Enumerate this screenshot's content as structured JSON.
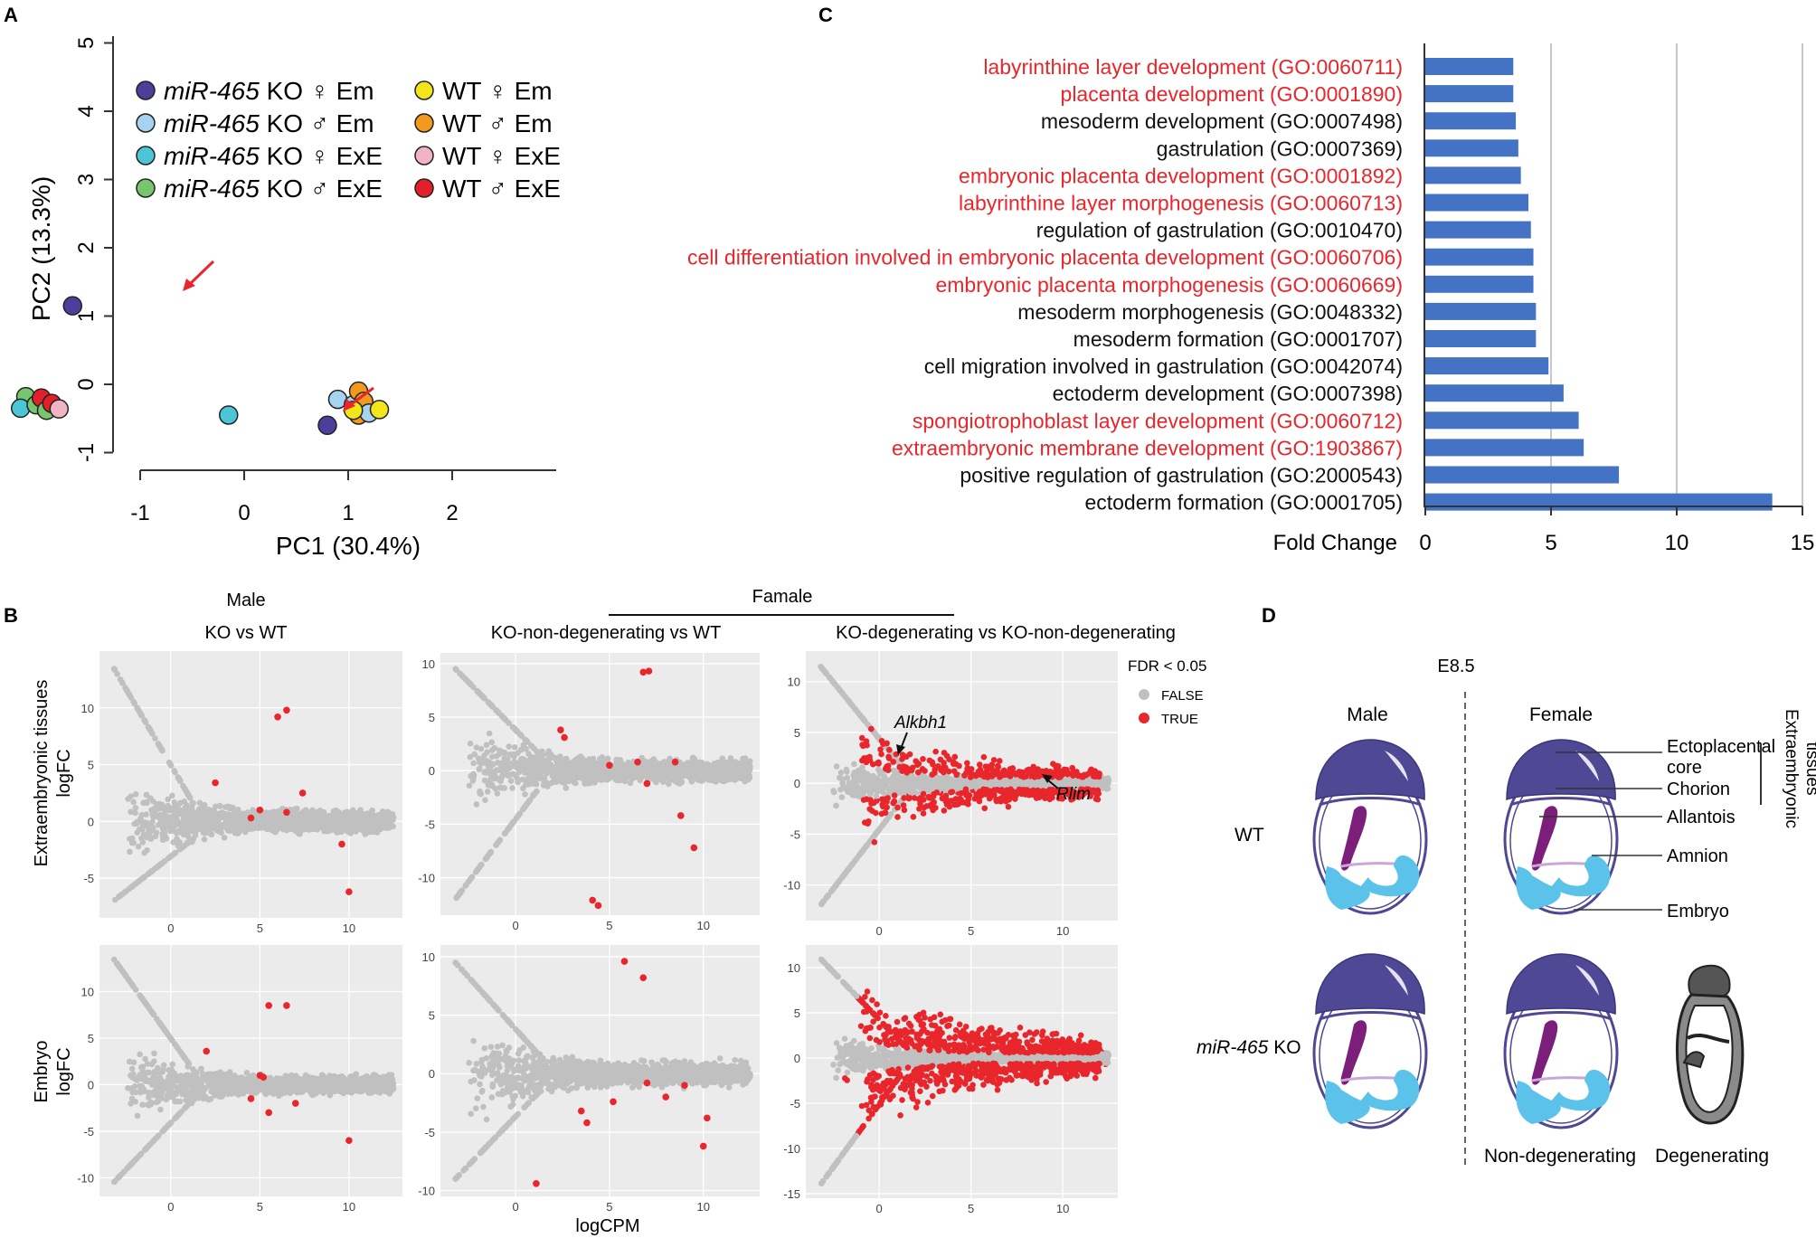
{
  "panel_labels": {
    "a": "A",
    "b": "B",
    "c": "C",
    "d": "D"
  },
  "colors": {
    "red": "#e8262b",
    "grey": "#c0c0c0",
    "bar": "#4472c4",
    "purple_dark": "#4f4894",
    "purple_light": "#7a75b8",
    "allantois": "#7b1f7a",
    "embryo": "#5bc2ea",
    "panelbg": "#ebebeb"
  },
  "pca": {
    "xlabel": "PC1 (30.4%)",
    "ylabel": "PC2 (13.3%)",
    "xticks": [
      "-1",
      "0",
      "1",
      "2"
    ],
    "yticks": [
      "-1",
      "0",
      "1",
      "2",
      "3",
      "4",
      "5"
    ],
    "legend": [
      {
        "pre": "miR-465",
        "post": " KO ♀ Em",
        "color": "#4b3f9b"
      },
      {
        "pre": "miR-465",
        "post": " KO ♂ Em",
        "color": "#a6d3ef"
      },
      {
        "pre": "miR-465",
        "post": " KO ♀ ExE",
        "color": "#4cc6d6"
      },
      {
        "pre": "miR-465",
        "post": " KO ♂ ExE",
        "color": "#76c66d"
      },
      {
        "pre": "",
        "post": "WT ♀ Em",
        "color": "#f2e51b"
      },
      {
        "pre": "",
        "post": "WT ♂ Em",
        "color": "#f29a1e"
      },
      {
        "pre": "",
        "post": "WT ♀ ExE",
        "color": "#f0b4c4"
      },
      {
        "pre": "",
        "post": "WT ♂ ExE",
        "color": "#e3202a"
      }
    ]
  },
  "go": {
    "axis_title": "Fold Change",
    "xticks": [
      "0",
      "5",
      "10",
      "15"
    ],
    "terms": [
      {
        "label": "labyrinthine layer development (GO:0060711)",
        "value": 3.5,
        "red": true
      },
      {
        "label": "placenta development (GO:0001890)",
        "value": 3.5,
        "red": true
      },
      {
        "label": "mesoderm development (GO:0007498)",
        "value": 3.6,
        "red": false
      },
      {
        "label": "gastrulation (GO:0007369)",
        "value": 3.7,
        "red": false
      },
      {
        "label": "embryonic placenta development (GO:0001892)",
        "value": 3.8,
        "red": true
      },
      {
        "label": "labyrinthine layer morphogenesis (GO:0060713)",
        "value": 4.1,
        "red": true
      },
      {
        "label": "regulation of gastrulation (GO:0010470)",
        "value": 4.2,
        "red": false
      },
      {
        "label": "cell differentiation involved in embryonic placenta development (GO:0060706)",
        "value": 4.3,
        "red": true
      },
      {
        "label": "embryonic placenta morphogenesis (GO:0060669)",
        "value": 4.3,
        "red": true
      },
      {
        "label": "mesoderm morphogenesis (GO:0048332)",
        "value": 4.4,
        "red": false
      },
      {
        "label": "mesoderm formation (GO:0001707)",
        "value": 4.4,
        "red": false
      },
      {
        "label": "cell migration involved in gastrulation (GO:0042074)",
        "value": 4.9,
        "red": false
      },
      {
        "label": "ectoderm development (GO:0007398)",
        "value": 5.5,
        "red": false
      },
      {
        "label": "spongiotrophoblast layer development (GO:0060712)",
        "value": 6.1,
        "red": true
      },
      {
        "label": "extraembryonic membrane development (GO:1903867)",
        "value": 6.3,
        "red": true
      },
      {
        "label": "positive regulation of gastrulation (GO:2000543)",
        "value": 7.7,
        "red": false
      },
      {
        "label": "ectoderm formation (GO:0001705)",
        "value": 13.8,
        "red": false
      }
    ]
  },
  "ma": {
    "header_male": "Male",
    "header_female": "Famale",
    "titles": [
      "KO vs WT",
      "KO-non-degenerating vs WT",
      "KO-degenerating vs KO-non-degenerating"
    ],
    "row_labels": [
      [
        "Extraembryonic tissues",
        "logFC"
      ],
      [
        "Embryo",
        "logFC"
      ]
    ],
    "xlabel": "logCPM",
    "legend_title": "FDR < 0.05",
    "legend_false": "FALSE",
    "legend_true": "TRUE",
    "gene1": "Alkbh1",
    "gene2": "Rlim",
    "panels": [
      {
        "xlim": [
          -4,
          13
        ],
        "ylim": [
          -8.5,
          15
        ],
        "xticks": [
          0,
          5,
          10
        ],
        "yticks": [
          -5,
          0,
          5,
          10
        ],
        "xticklabels": [
          "0",
          "5",
          "10"
        ],
        "yticklabels": [
          "-5",
          "0",
          "5",
          "10"
        ],
        "spread": 3.2,
        "red_density": 0,
        "red": [
          [
            6.5,
            9.8
          ],
          [
            6,
            9.2
          ],
          [
            2.5,
            3.4
          ],
          [
            7.4,
            2.5
          ],
          [
            9.6,
            -2
          ],
          [
            10,
            -6.2
          ],
          [
            5,
            1
          ],
          [
            6.5,
            0.8
          ],
          [
            4.5,
            0.3
          ]
        ]
      },
      {
        "xlim": [
          -4,
          13
        ],
        "ylim": [
          -13.5,
          11
        ],
        "xticks": [
          0,
          5,
          10
        ],
        "yticks": [
          -10,
          -5,
          0,
          5,
          10
        ],
        "xticklabels": [
          "0",
          "5",
          "10"
        ],
        "yticklabels": [
          "-10",
          "-5",
          "0",
          "5",
          "10"
        ],
        "spread": 3.5,
        "red_density": 0,
        "red": [
          [
            6.8,
            9.2
          ],
          [
            7.1,
            9.3
          ],
          [
            2.4,
            3.8
          ],
          [
            2.6,
            3.1
          ],
          [
            8.8,
            -4.2
          ],
          [
            4.1,
            -12.1
          ],
          [
            4.4,
            -12.6
          ],
          [
            9.5,
            -7.2
          ],
          [
            8.5,
            0.8
          ],
          [
            6.5,
            0.8
          ],
          [
            7,
            -1.2
          ],
          [
            5,
            0.5
          ]
        ]
      },
      {
        "xlim": [
          -4,
          13
        ],
        "ylim": [
          -13.5,
          13
        ],
        "xticks": [
          0,
          5,
          10
        ],
        "yticks": [
          -10,
          -5,
          0,
          5,
          10
        ],
        "xticklabels": [
          "0",
          "5",
          "10"
        ],
        "yticklabels": [
          "-10",
          "-5",
          "0",
          "5",
          "10"
        ],
        "spread": 2.2,
        "red_density": 0.55,
        "red": []
      },
      {
        "xlim": [
          -4,
          13
        ],
        "ylim": [
          -12,
          15
        ],
        "xticks": [
          0,
          5,
          10
        ],
        "yticks": [
          -10,
          -5,
          0,
          5,
          10
        ],
        "xticklabels": [
          "0",
          "5",
          "10"
        ],
        "yticklabels": [
          "-10",
          "-5",
          "0",
          "5",
          "10"
        ],
        "spread": 3.3,
        "red_density": 0,
        "red": [
          [
            5.5,
            8.5
          ],
          [
            6.5,
            8.5
          ],
          [
            5,
            1
          ],
          [
            2,
            3.6
          ],
          [
            5.2,
            0.8
          ],
          [
            5.5,
            -3
          ],
          [
            10,
            -6
          ],
          [
            7,
            -2
          ],
          [
            4.5,
            -1.5
          ]
        ]
      },
      {
        "xlim": [
          -4,
          13
        ],
        "ylim": [
          -10.5,
          11
        ],
        "xticks": [
          0,
          5,
          10
        ],
        "yticks": [
          -10,
          -5,
          0,
          5,
          10
        ],
        "xticklabels": [
          "0",
          "5",
          "10"
        ],
        "yticklabels": [
          "-10",
          "-5",
          "0",
          "5",
          "10"
        ],
        "spread": 3.4,
        "red_density": 0,
        "red": [
          [
            5.8,
            9.6
          ],
          [
            6.8,
            8.2
          ],
          [
            1.1,
            -9.4
          ],
          [
            3.5,
            -3.2
          ],
          [
            5.2,
            -2.4
          ],
          [
            3.8,
            -4.2
          ],
          [
            10,
            -6.2
          ],
          [
            10.2,
            -3.8
          ],
          [
            8,
            -2
          ],
          [
            7,
            -0.8
          ],
          [
            9,
            -1
          ]
        ]
      },
      {
        "xlim": [
          -4,
          13
        ],
        "ylim": [
          -15.5,
          12.5
        ],
        "xticks": [
          0,
          5,
          10
        ],
        "yticks": [
          -15,
          -10,
          -5,
          0,
          5,
          10
        ],
        "xticklabels": [
          "0",
          "5",
          "10"
        ],
        "yticklabels": [
          "-15",
          "-10",
          "-5",
          "0",
          "5",
          "10"
        ],
        "spread": 2.2,
        "red_density": 0.97,
        "red": []
      }
    ]
  },
  "diagram": {
    "stage": "E8.5",
    "male": "Male",
    "female": "Female",
    "wt": "WT",
    "ko_pre": "miR-465",
    "ko_post": " KO",
    "non_degenerating": "Non-degenerating",
    "degenerating": "Degenerating",
    "labels": [
      "Ectoplacental",
      "core",
      "Chorion",
      "Allantois",
      "Amnion",
      "Embryo"
    ],
    "extra_line1": "Extraembryonic",
    "extra_line2": "tissues"
  }
}
